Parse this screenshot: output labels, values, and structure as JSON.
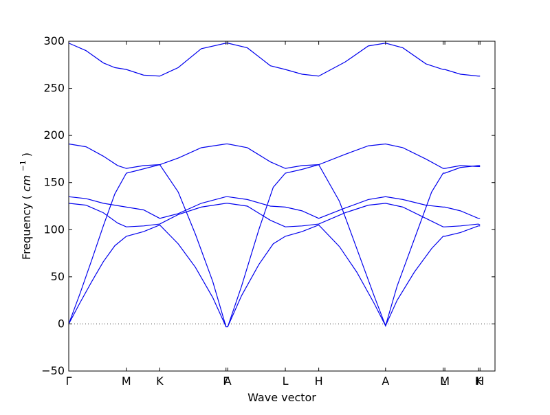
{
  "chart_data": {
    "type": "line",
    "title": "",
    "xlabel": "Wave vector",
    "ylabel": "Frequency",
    "ylabel_unit": "cm",
    "ylabel_unit_exp": "−1",
    "ylim": [
      -50,
      300
    ],
    "y_ticks": [
      -50,
      0,
      50,
      100,
      150,
      200,
      250,
      300
    ],
    "y_tick_labels": [
      "−50",
      "0",
      "50",
      "100",
      "150",
      "200",
      "250",
      "300"
    ],
    "x_ticks": [
      {
        "label": "Γ",
        "x": 0
      },
      {
        "label": "M",
        "x": 1.0
      },
      {
        "label": "K",
        "x": 1.58
      },
      {
        "label": "Γ",
        "x": 2.73
      },
      {
        "label": "A",
        "x": 2.76
      },
      {
        "label": "L",
        "x": 3.76
      },
      {
        "label": "H",
        "x": 4.34
      },
      {
        "label": "A",
        "x": 5.5
      },
      {
        "label": "L",
        "x": 6.5
      },
      {
        "label": "M",
        "x": 6.53
      },
      {
        "label": "K",
        "x": 7.11
      },
      {
        "label": "H",
        "x": 7.14
      }
    ],
    "xlim": [
      0,
      7.4
    ],
    "grid": false,
    "zero_line": {
      "y": 0,
      "style": "dotted"
    },
    "line_color": "#0000ee",
    "series": [
      {
        "points": [
          [
            0,
            298
          ],
          [
            0.3,
            290
          ],
          [
            0.6,
            277
          ],
          [
            0.8,
            272
          ],
          [
            1.0,
            270
          ],
          [
            1.3,
            264
          ],
          [
            1.58,
            263
          ],
          [
            1.9,
            272
          ],
          [
            2.3,
            292
          ],
          [
            2.73,
            298
          ],
          [
            2.76,
            298
          ],
          [
            3.1,
            293
          ],
          [
            3.5,
            274
          ],
          [
            3.76,
            270
          ],
          [
            4.05,
            265
          ],
          [
            4.34,
            263
          ],
          [
            4.8,
            278
          ],
          [
            5.2,
            295
          ],
          [
            5.5,
            298
          ],
          [
            5.8,
            293
          ],
          [
            6.2,
            276
          ],
          [
            6.5,
            270
          ],
          [
            6.53,
            270
          ],
          [
            6.8,
            265
          ],
          [
            7.11,
            263
          ],
          [
            7.14,
            263
          ]
        ]
      },
      {
        "points": [
          [
            0,
            191
          ],
          [
            0.3,
            188
          ],
          [
            0.6,
            178
          ],
          [
            0.85,
            168
          ],
          [
            1.0,
            165
          ],
          [
            1.3,
            168
          ],
          [
            1.58,
            169
          ],
          [
            1.9,
            176
          ],
          [
            2.3,
            187
          ],
          [
            2.73,
            191
          ],
          [
            2.76,
            191
          ],
          [
            3.1,
            187
          ],
          [
            3.5,
            172
          ],
          [
            3.76,
            165
          ],
          [
            4.05,
            168
          ],
          [
            4.34,
            169
          ],
          [
            4.8,
            180
          ],
          [
            5.2,
            189
          ],
          [
            5.5,
            191
          ],
          [
            5.8,
            187
          ],
          [
            6.2,
            175
          ],
          [
            6.5,
            165
          ],
          [
            6.53,
            165
          ],
          [
            6.8,
            168
          ],
          [
            7.11,
            167
          ],
          [
            7.14,
            167
          ]
        ]
      },
      {
        "points": [
          [
            0,
            0
          ],
          [
            0.2,
            33
          ],
          [
            0.4,
            68
          ],
          [
            0.6,
            104
          ],
          [
            0.8,
            138
          ],
          [
            1.0,
            160
          ],
          [
            1.2,
            163
          ],
          [
            1.58,
            169
          ],
          [
            1.9,
            140
          ],
          [
            2.2,
            95
          ],
          [
            2.5,
            45
          ],
          [
            2.73,
            -3
          ],
          [
            2.76,
            -3
          ],
          [
            3.0,
            40
          ],
          [
            3.3,
            100
          ],
          [
            3.55,
            145
          ],
          [
            3.76,
            160
          ],
          [
            4.05,
            164
          ],
          [
            4.34,
            169
          ],
          [
            4.7,
            130
          ],
          [
            5.0,
            80
          ],
          [
            5.3,
            30
          ],
          [
            5.5,
            -2
          ],
          [
            5.7,
            40
          ],
          [
            6.0,
            90
          ],
          [
            6.3,
            140
          ],
          [
            6.5,
            160
          ],
          [
            6.53,
            160
          ],
          [
            6.8,
            166
          ],
          [
            7.11,
            168
          ],
          [
            7.14,
            168
          ]
        ]
      },
      {
        "points": [
          [
            0,
            135
          ],
          [
            0.3,
            133
          ],
          [
            0.6,
            128
          ],
          [
            1.0,
            124
          ],
          [
            1.3,
            121
          ],
          [
            1.58,
            112
          ],
          [
            1.9,
            117
          ],
          [
            2.3,
            128
          ],
          [
            2.73,
            135
          ],
          [
            2.76,
            135
          ],
          [
            3.1,
            132
          ],
          [
            3.5,
            125
          ],
          [
            3.76,
            124
          ],
          [
            4.05,
            120
          ],
          [
            4.34,
            112
          ],
          [
            4.8,
            123
          ],
          [
            5.2,
            132
          ],
          [
            5.5,
            135
          ],
          [
            5.8,
            132
          ],
          [
            6.2,
            126
          ],
          [
            6.5,
            124
          ],
          [
            6.53,
            124
          ],
          [
            6.8,
            120
          ],
          [
            7.11,
            112
          ],
          [
            7.14,
            112
          ]
        ]
      },
      {
        "points": [
          [
            0,
            128
          ],
          [
            0.3,
            126
          ],
          [
            0.6,
            118
          ],
          [
            0.85,
            107
          ],
          [
            1.0,
            103
          ],
          [
            1.3,
            104
          ],
          [
            1.58,
            106
          ],
          [
            1.9,
            116
          ],
          [
            2.3,
            124
          ],
          [
            2.73,
            128
          ],
          [
            2.76,
            128
          ],
          [
            3.1,
            125
          ],
          [
            3.5,
            110
          ],
          [
            3.76,
            103
          ],
          [
            4.05,
            104
          ],
          [
            4.34,
            106
          ],
          [
            4.8,
            118
          ],
          [
            5.2,
            126
          ],
          [
            5.5,
            128
          ],
          [
            5.8,
            124
          ],
          [
            6.2,
            112
          ],
          [
            6.5,
            103
          ],
          [
            6.53,
            103
          ],
          [
            6.8,
            104
          ],
          [
            7.11,
            106
          ],
          [
            7.14,
            105
          ]
        ]
      },
      {
        "points": [
          [
            0,
            0
          ],
          [
            0.2,
            23
          ],
          [
            0.4,
            45
          ],
          [
            0.6,
            66
          ],
          [
            0.8,
            83
          ],
          [
            1.0,
            93
          ],
          [
            1.3,
            98
          ],
          [
            1.58,
            105
          ],
          [
            1.9,
            85
          ],
          [
            2.2,
            60
          ],
          [
            2.5,
            28
          ],
          [
            2.73,
            -3
          ],
          [
            2.76,
            -3
          ],
          [
            3.0,
            30
          ],
          [
            3.3,
            63
          ],
          [
            3.55,
            85
          ],
          [
            3.76,
            93
          ],
          [
            4.05,
            98
          ],
          [
            4.34,
            105
          ],
          [
            4.7,
            82
          ],
          [
            5.0,
            55
          ],
          [
            5.3,
            22
          ],
          [
            5.5,
            -2
          ],
          [
            5.7,
            25
          ],
          [
            6.0,
            55
          ],
          [
            6.3,
            80
          ],
          [
            6.5,
            93
          ],
          [
            6.53,
            93
          ],
          [
            6.8,
            97
          ],
          [
            7.11,
            104
          ],
          [
            7.14,
            104
          ]
        ]
      }
    ]
  }
}
